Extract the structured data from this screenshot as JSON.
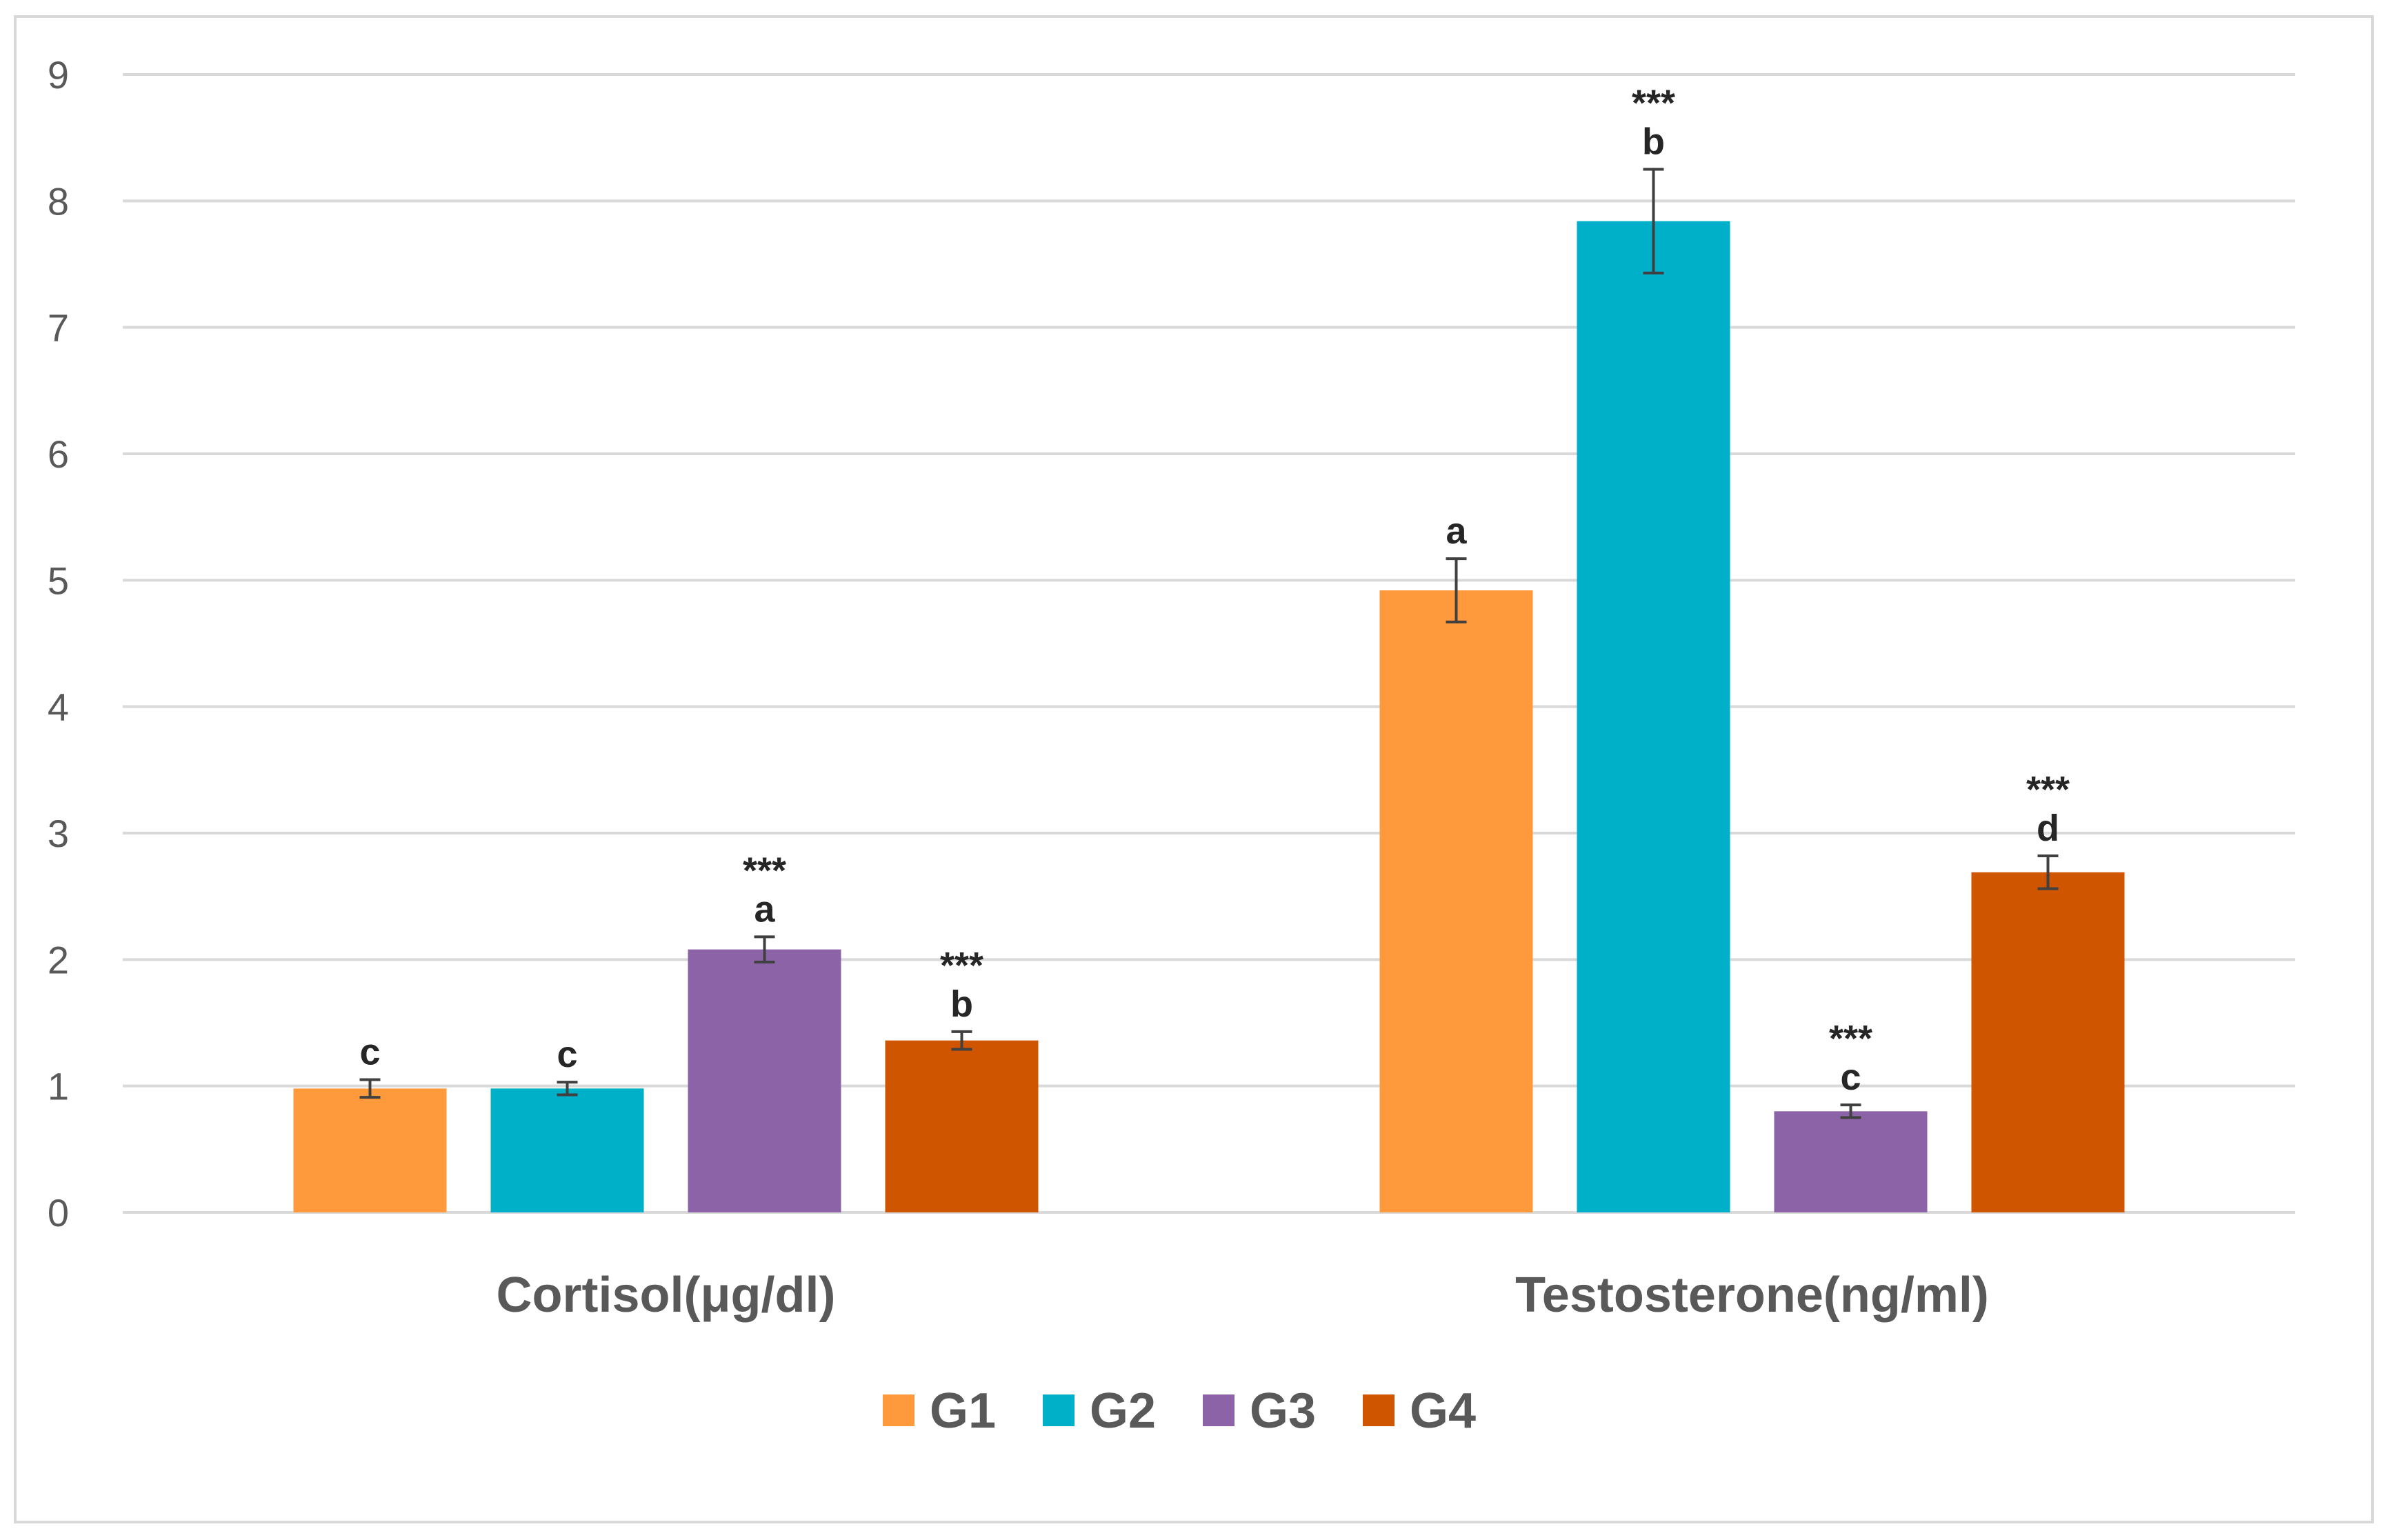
{
  "chart_data": {
    "type": "bar",
    "title": "",
    "xlabel": "",
    "ylabel": "",
    "ylim": [
      0,
      9
    ],
    "yticks": [
      0,
      1,
      2,
      3,
      4,
      5,
      6,
      7,
      8,
      9
    ],
    "grid": true,
    "legend_position": "bottom",
    "categories": [
      "Cortisol(μg/dl)",
      "Testosterone(ng/ml)"
    ],
    "series": [
      {
        "name": "G1",
        "color": "#FF9A3C",
        "values": [
          0.98,
          4.92
        ],
        "errors": [
          0.07,
          0.25
        ],
        "letters": [
          "c",
          "a"
        ],
        "stars": [
          "",
          ""
        ]
      },
      {
        "name": "G2",
        "color": "#00AFC8",
        "values": [
          0.98,
          7.84
        ],
        "errors": [
          0.05,
          0.41
        ],
        "letters": [
          "c",
          "b"
        ],
        "stars": [
          "",
          "***"
        ]
      },
      {
        "name": "G3",
        "color": "#8B63A6",
        "values": [
          2.08,
          0.8
        ],
        "errors": [
          0.1,
          0.05
        ],
        "letters": [
          "a",
          "c"
        ],
        "stars": [
          "***",
          "***"
        ]
      },
      {
        "name": "G4",
        "color": "#D05500",
        "values": [
          1.36,
          2.69
        ],
        "errors": [
          0.07,
          0.13
        ],
        "letters": [
          "b",
          "d"
        ],
        "stars": [
          "***",
          "***"
        ]
      }
    ]
  }
}
